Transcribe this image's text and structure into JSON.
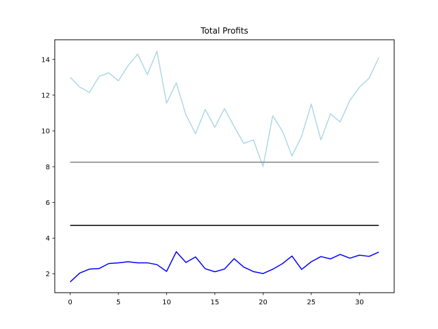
{
  "chart_data": {
    "type": "line",
    "title": "Total Profits",
    "xlabel": "",
    "ylabel": "",
    "xlim": [
      -1.6,
      33.6
    ],
    "ylim": [
      0.95,
      15.1
    ],
    "xticks": [
      0,
      5,
      10,
      15,
      20,
      25,
      30
    ],
    "yticks": [
      2,
      4,
      6,
      8,
      10,
      12,
      14
    ],
    "grid": false,
    "series": [
      {
        "color": "#add8e6",
        "x": [
          0,
          1,
          2,
          3,
          4,
          5,
          6,
          7,
          8,
          9,
          10,
          11,
          12,
          13,
          14,
          15,
          16,
          17,
          18,
          19,
          20,
          21,
          22,
          23,
          24,
          25,
          26,
          27,
          28,
          29,
          30,
          31,
          32
        ],
        "values": [
          13.0,
          12.45,
          12.15,
          13.05,
          13.25,
          12.8,
          13.65,
          14.3,
          13.15,
          14.45,
          11.55,
          12.7,
          10.9,
          9.85,
          11.2,
          10.2,
          11.25,
          10.25,
          9.3,
          9.5,
          8.0,
          10.85,
          10.0,
          8.6,
          9.7,
          11.5,
          9.5,
          10.95,
          10.5,
          11.7,
          12.45,
          12.95,
          14.1
        ]
      },
      {
        "color": "#808080",
        "x": [
          0,
          32
        ],
        "values": [
          8.25,
          8.25
        ]
      },
      {
        "color": "#000000",
        "x": [
          0,
          32
        ],
        "values": [
          4.72,
          4.72
        ]
      },
      {
        "color": "#0000ff",
        "x": [
          0,
          1,
          2,
          3,
          4,
          5,
          6,
          7,
          8,
          9,
          10,
          11,
          12,
          13,
          14,
          15,
          16,
          17,
          18,
          19,
          20,
          21,
          22,
          23,
          24,
          25,
          26,
          27,
          28,
          29,
          30,
          31,
          32
        ],
        "values": [
          1.55,
          2.05,
          2.27,
          2.3,
          2.58,
          2.62,
          2.68,
          2.62,
          2.62,
          2.52,
          2.14,
          3.24,
          2.64,
          2.95,
          2.29,
          2.12,
          2.27,
          2.85,
          2.38,
          2.13,
          2.02,
          2.26,
          2.57,
          3.0,
          2.25,
          2.68,
          2.97,
          2.84,
          3.09,
          2.88,
          3.05,
          2.98,
          3.22
        ]
      }
    ]
  }
}
